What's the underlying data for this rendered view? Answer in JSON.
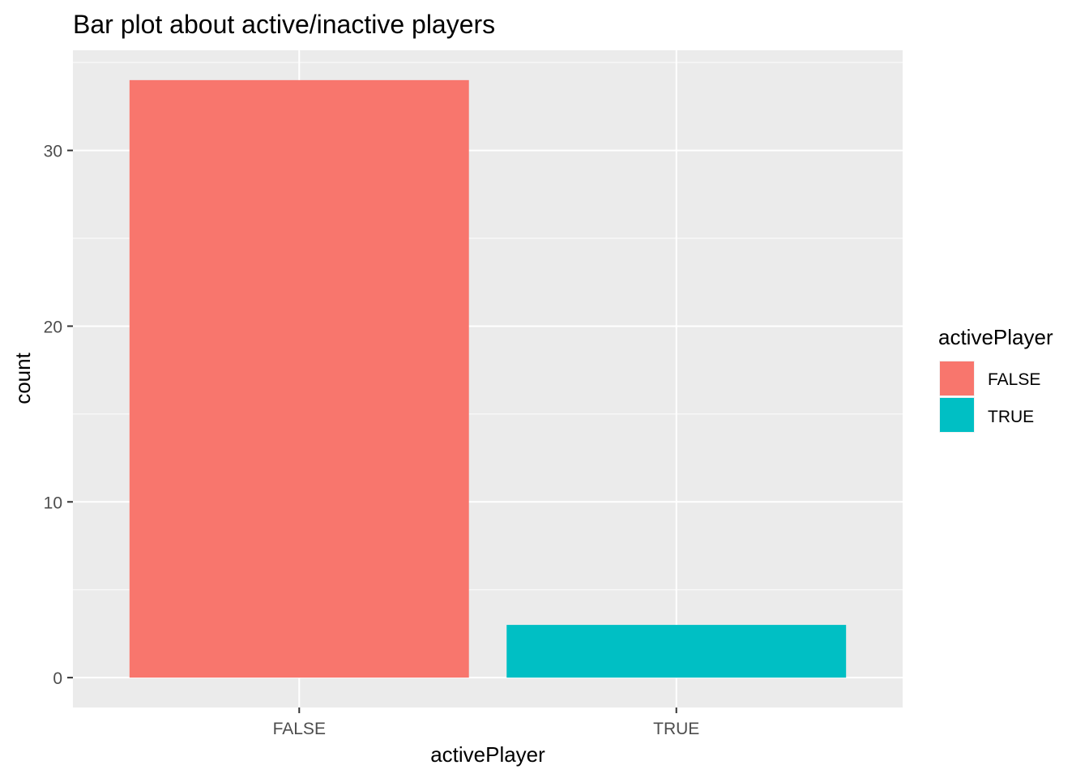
{
  "chart_data": {
    "type": "bar",
    "title": "Bar plot about active/inactive players",
    "xlabel": "activePlayer",
    "ylabel": "count",
    "categories": [
      "FALSE",
      "TRUE"
    ],
    "values": [
      34,
      3
    ],
    "bar_colors": [
      "#F8766D",
      "#00BFC4"
    ],
    "ylim": [
      -1.7,
      35.7
    ],
    "yticks": [
      0,
      10,
      20,
      30
    ],
    "ytick_labels": [
      "0",
      "10",
      "20",
      "30"
    ],
    "grid": true,
    "panel_background": "#EBEBEB",
    "legend": {
      "title": "activePlayer",
      "placement": "right",
      "entries": [
        {
          "label": "FALSE",
          "color": "#F8766D"
        },
        {
          "label": "TRUE",
          "color": "#00BFC4"
        }
      ]
    }
  }
}
